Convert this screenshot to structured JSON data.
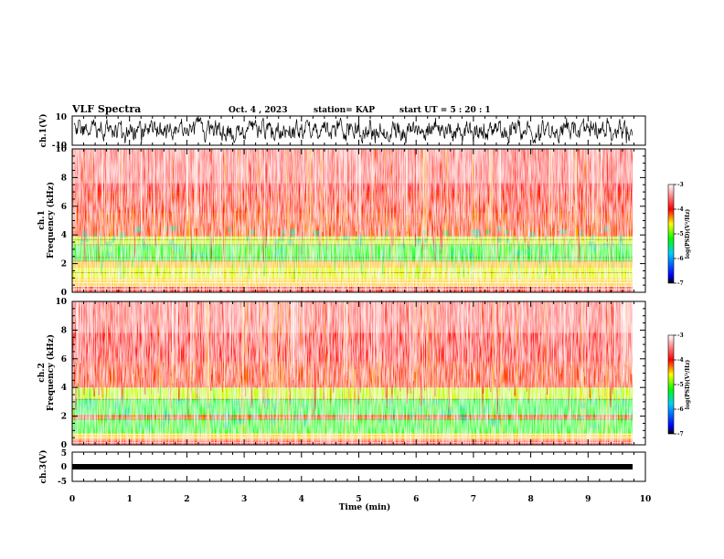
{
  "header": {
    "title": "VLF Spectra",
    "date": "Oct. 4 , 2023",
    "station": "station= KAP",
    "start_ut": "start  UT =  5 : 20 : 1"
  },
  "chart_data": [
    {
      "type": "line",
      "ylabel": "ch.1(V)",
      "ylim": [
        -10,
        10
      ],
      "yticks": [
        "10",
        "-10"
      ],
      "xlim": [
        0,
        10
      ]
    },
    {
      "type": "heatmap",
      "ylabel": "ch.1\nFrequency (kHz)",
      "ylabel_parts": [
        "ch.1",
        "Frequency  (kHz)"
      ],
      "ylim": [
        0,
        10
      ],
      "yticks": [
        "0",
        "2",
        "4",
        "6",
        "8",
        "10"
      ],
      "xlim": [
        0,
        10
      ],
      "colorbar": {
        "label": "log(PSD)(V²/Hz)",
        "range": [
          -7,
          -3
        ],
        "ticks": [
          "-3",
          "-4",
          "-5",
          "-6",
          "-7"
        ]
      }
    },
    {
      "type": "heatmap",
      "ylabel": "ch.2\nFrequency (kHz)",
      "ylabel_parts": [
        "ch.2",
        "Frequency  (kHz)"
      ],
      "ylim": [
        0,
        10
      ],
      "yticks": [
        "0",
        "2",
        "4",
        "6",
        "8",
        "10"
      ],
      "xlim": [
        0,
        10
      ],
      "colorbar": {
        "label": "log(PSD)(V²/Hz)",
        "range": [
          -7,
          -3
        ],
        "ticks": [
          "-3",
          "-4",
          "-5",
          "-6",
          "-7"
        ]
      }
    },
    {
      "type": "line",
      "ylabel": "ch.3(V)",
      "ylim": [
        -5,
        5
      ],
      "yticks": [
        "5",
        "0",
        "-5"
      ],
      "xlabel": "Time  (min)",
      "xticks": [
        "0",
        "1",
        "2",
        "3",
        "4",
        "5",
        "6",
        "7",
        "8",
        "9",
        "10"
      ],
      "xlim": [
        0,
        10
      ]
    }
  ]
}
